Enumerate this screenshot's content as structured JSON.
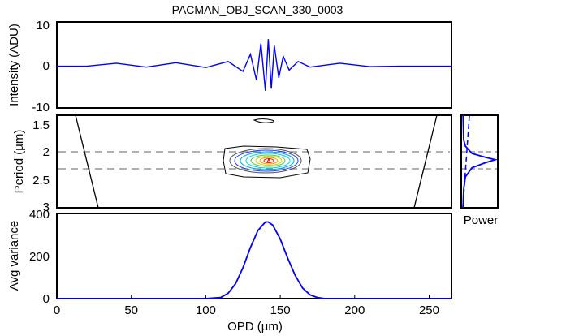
{
  "title": "PACMAN_OBJ_SCAN_330_0003",
  "colors": {
    "signal": "#0000ff",
    "axis": "#000000",
    "guide": "#808080",
    "contour_outer": "#000000"
  },
  "chart_data": [
    {
      "id": "intensity",
      "type": "line",
      "ylabel": "Intensity (ADU)",
      "ylim": [
        -10,
        10
      ],
      "yticks": [
        "10",
        "0",
        "-10"
      ],
      "xlim": [
        0,
        265
      ],
      "series": [
        {
          "x": [
            0,
            20,
            40,
            60,
            80,
            100,
            115,
            125,
            130,
            134,
            137,
            140,
            142,
            144,
            146,
            149,
            152,
            156,
            162,
            170,
            190,
            210,
            230,
            265
          ],
          "values": [
            -0.3,
            -0.3,
            0.4,
            -0.5,
            0.5,
            -0.6,
            0.8,
            -1.5,
            2.5,
            -3.5,
            5,
            -6,
            6,
            -5.5,
            4.5,
            -3,
            2,
            -1.2,
            0.8,
            -0.5,
            0.4,
            -0.4,
            -0.3,
            -0.3
          ]
        }
      ]
    },
    {
      "id": "period",
      "type": "heatmap",
      "ylabel": "Period (µm)",
      "ylim": [
        1.5,
        3
      ],
      "yticks": [
        "1.5",
        "2",
        "2.5",
        "3"
      ],
      "xlim": [
        0,
        265
      ],
      "guide_y": [
        2.0,
        2.5
      ],
      "peak": {
        "x": 142,
        "y": 2.25
      }
    },
    {
      "id": "power",
      "type": "line",
      "xlabel": "Power",
      "series": [
        {
          "x": [
            0.03,
            0.05,
            0.1,
            0.3,
            0.7,
            1.0,
            0.7,
            0.3,
            0.1,
            0.05,
            0.03
          ],
          "values": [
            1.5,
            1.9,
            2.0,
            2.12,
            2.18,
            2.22,
            2.27,
            2.35,
            2.5,
            2.7,
            3.0
          ]
        }
      ]
    },
    {
      "id": "variance",
      "type": "line",
      "ylabel": "Avg variance",
      "ylim": [
        0,
        400
      ],
      "yticks": [
        "400",
        "200",
        "0"
      ],
      "xlabel": "OPD (µm)",
      "xlim": [
        0,
        265
      ],
      "xticks": [
        "0",
        "50",
        "100",
        "150",
        "200",
        "250"
      ],
      "series": [
        {
          "x": [
            0,
            100,
            110,
            115,
            120,
            125,
            130,
            135,
            140,
            142,
            145,
            150,
            155,
            160,
            165,
            170,
            175,
            180,
            265
          ],
          "values": [
            0,
            0,
            5,
            25,
            70,
            145,
            240,
            320,
            360,
            360,
            345,
            280,
            190,
            110,
            50,
            18,
            5,
            0,
            0
          ]
        }
      ]
    }
  ]
}
